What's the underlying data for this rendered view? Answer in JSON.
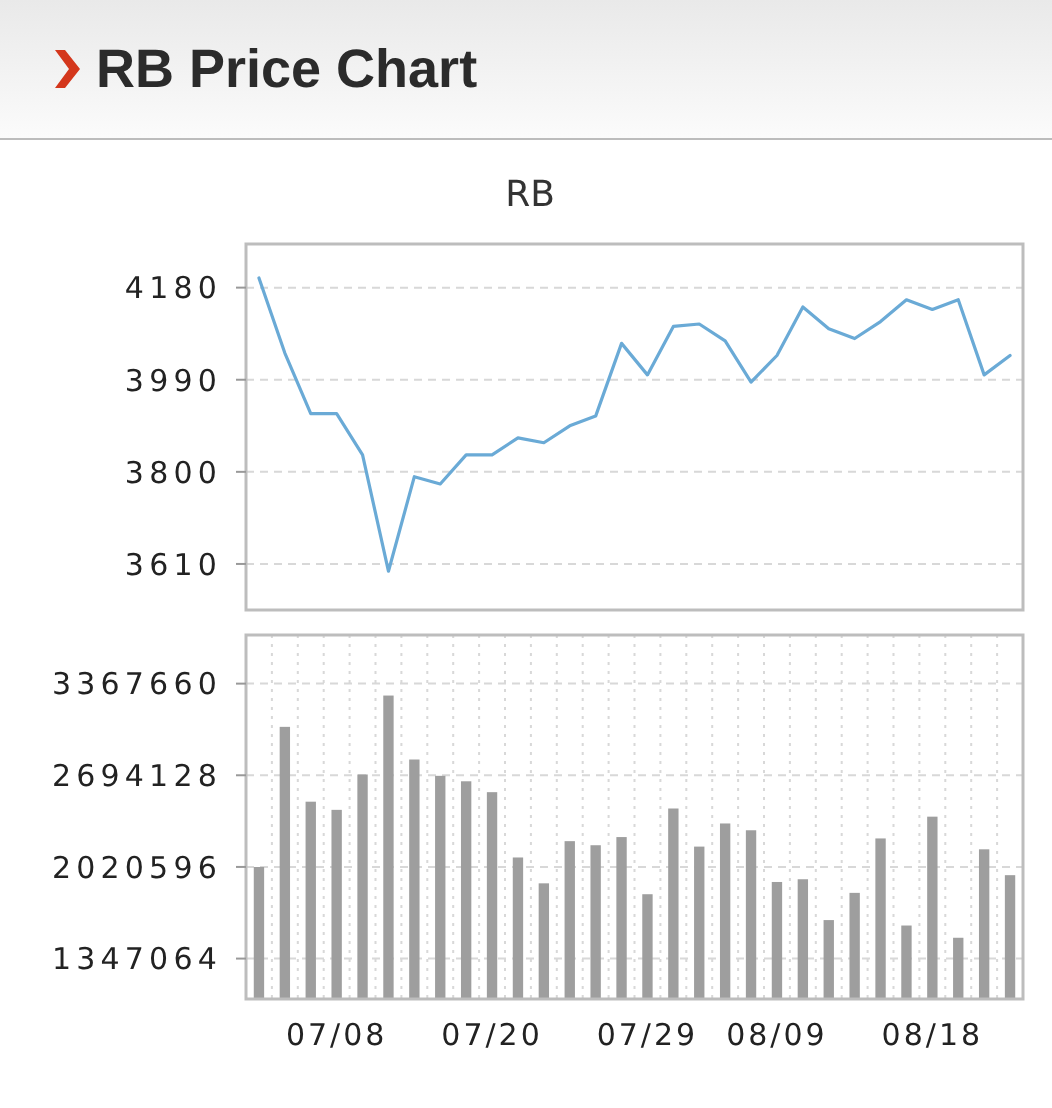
{
  "chart_data": [
    {
      "type": "line",
      "title": "RB Price Chart",
      "subtitle": "RB",
      "categories": [
        null,
        null,
        null,
        null,
        null,
        null,
        null,
        null,
        null,
        null,
        null,
        null,
        null,
        null,
        null,
        null,
        null,
        null,
        null,
        null,
        null,
        null,
        null,
        null,
        null,
        null,
        null,
        null,
        null,
        null
      ],
      "values": [
        4200,
        4045,
        3920,
        3920,
        3835,
        3595,
        3790,
        3775,
        3835,
        3835,
        3870,
        3860,
        3895,
        3915,
        4065,
        4000,
        4100,
        4105,
        4070,
        3985,
        4040,
        4140,
        4095,
        4075,
        4110,
        4155,
        4135,
        4155,
        4000,
        4040
      ],
      "color": "#6aaad6",
      "ylim": [
        3515,
        4270
      ],
      "yticks": [
        3610,
        3800,
        3990,
        4180
      ],
      "grid": "y",
      "tick_labels": "y"
    },
    {
      "type": "bar",
      "categories": [
        null,
        null,
        null,
        "07/08",
        null,
        null,
        null,
        null,
        null,
        "07/20",
        null,
        null,
        null,
        null,
        null,
        "07/29",
        null,
        null,
        null,
        null,
        "08/09",
        null,
        null,
        null,
        null,
        null,
        "08/18",
        null,
        null,
        null
      ],
      "values": [
        2020000,
        3050000,
        2500000,
        2440000,
        2700000,
        3280000,
        2810000,
        2690000,
        2650000,
        2570000,
        2090000,
        1900000,
        2210000,
        2180000,
        2240000,
        1820000,
        2450000,
        2170000,
        2340000,
        2290000,
        1910000,
        1930000,
        1630000,
        1830000,
        2230000,
        1590000,
        2390000,
        1500000,
        2150000,
        1960000
      ],
      "color": "#9e9e9e",
      "ylim": [
        1050000,
        3725000
      ],
      "yticks": [
        1347064,
        2020596,
        2694128,
        3367660
      ],
      "grid": true
    }
  ]
}
